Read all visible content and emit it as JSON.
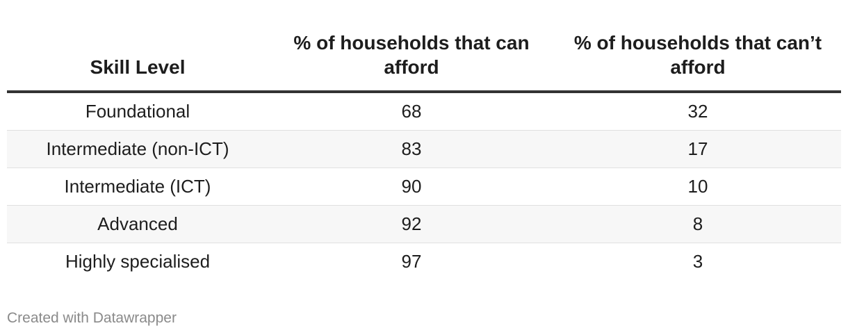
{
  "chart_data": {
    "type": "table",
    "columns": [
      "Skill Level",
      "% of households that can afford",
      "% of households that can’t afford"
    ],
    "rows": [
      [
        "Foundational",
        "68",
        "32"
      ],
      [
        "Intermediate (non-ICT)",
        "83",
        "17"
      ],
      [
        "Intermediate (ICT)",
        "90",
        "10"
      ],
      [
        "Advanced",
        "92",
        "8"
      ],
      [
        "Highly specialised",
        "97",
        "3"
      ]
    ]
  },
  "footer": {
    "credit": "Created with Datawrapper"
  }
}
